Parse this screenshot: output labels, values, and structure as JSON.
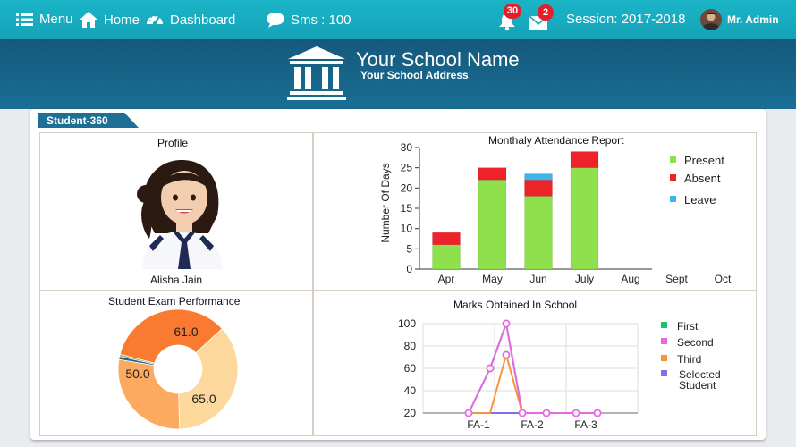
{
  "topbar": {
    "menu_label": "Menu",
    "home_label": "Home",
    "dashboard_label": "Dashboard",
    "sms_label": "Sms : 100",
    "notification_count": "30",
    "mail_count": "2",
    "session_label": "Session: 2017-2018",
    "user_name": "Mr. Admin"
  },
  "banner": {
    "school_name": "Your School Name",
    "school_address": "Your School Address"
  },
  "panel": {
    "tab_label": "Student-360"
  },
  "profile": {
    "title": "Profile",
    "student_name": "Alisha Jain"
  },
  "attendance": {
    "title": "Monthaly Attendance Report",
    "ylabel": "Number Of Days",
    "legend": [
      "Present",
      "Absent",
      "Leave"
    ]
  },
  "exam": {
    "title": "Student Exam Performance"
  },
  "marks": {
    "title": "Marks Obtained In School",
    "legend": [
      "First",
      "Second",
      "Third",
      "Selected Student"
    ]
  },
  "colors": {
    "topbar": "#1bb4c7",
    "banner": "#15597c",
    "present": "#8ee04c",
    "absent": "#ee2229",
    "leave": "#3cb6e8",
    "badge": "#e0202a"
  },
  "chart_data": [
    {
      "type": "bar",
      "title": "Monthaly Attendance Report",
      "ylabel": "Number Of Days",
      "xlabel": "",
      "stacked": true,
      "categories": [
        "Apr",
        "May",
        "Jun",
        "July",
        "Aug",
        "Sept",
        "Oct"
      ],
      "series": [
        {
          "name": "Present",
          "color": "#8ee04c",
          "values": [
            6,
            22,
            18,
            25,
            0,
            0,
            0
          ]
        },
        {
          "name": "Absent",
          "color": "#ee2229",
          "values": [
            3,
            3,
            4,
            4,
            0,
            0,
            0
          ]
        },
        {
          "name": "Leave",
          "color": "#3cb6e8",
          "values": [
            0,
            0,
            1.5,
            0,
            0,
            0,
            0
          ]
        }
      ],
      "ylim": [
        0,
        30
      ],
      "yticks": [
        0,
        5,
        10,
        15,
        20,
        25,
        30
      ],
      "legend": "right"
    },
    {
      "type": "pie",
      "title": "Student Exam Performance",
      "donut": true,
      "slices": [
        {
          "value": 61.0,
          "label": "61.0",
          "color": "#f97a30"
        },
        {
          "value": 65.0,
          "label": "65.0",
          "color": "#fdd89d"
        },
        {
          "value": 50.0,
          "label": "50.0",
          "color": "#fcaa60"
        },
        {
          "value": 1.5,
          "label": "",
          "color": "#2e5d8c"
        },
        {
          "value": 1.0,
          "label": "",
          "color": "#8ab04a"
        }
      ]
    },
    {
      "type": "line",
      "title": "Marks Obtained In School",
      "categories": [
        "FA-1",
        "FA-2",
        "FA-3"
      ],
      "x": [
        0.85,
        1.25,
        1.55,
        1.85,
        2.3,
        2.85,
        3.25
      ],
      "series": [
        {
          "name": "First",
          "color": "#19c36b",
          "values": [
            20,
            60,
            100,
            20,
            20,
            20,
            20
          ]
        },
        {
          "name": "Second",
          "color": "#e867e6",
          "values": [
            20,
            60,
            100,
            20,
            20,
            20,
            20
          ]
        },
        {
          "name": "Third",
          "color": "#f7953a",
          "values": [
            20,
            20,
            72,
            20,
            20,
            20,
            20
          ]
        },
        {
          "name": "Selected Student",
          "color": "#7b72e8",
          "values": [
            20,
            20,
            20,
            20,
            20,
            20,
            20
          ]
        }
      ],
      "ylim": [
        20,
        100
      ],
      "yticks": [
        20,
        40,
        60,
        80,
        100
      ],
      "legend": "right"
    }
  ]
}
